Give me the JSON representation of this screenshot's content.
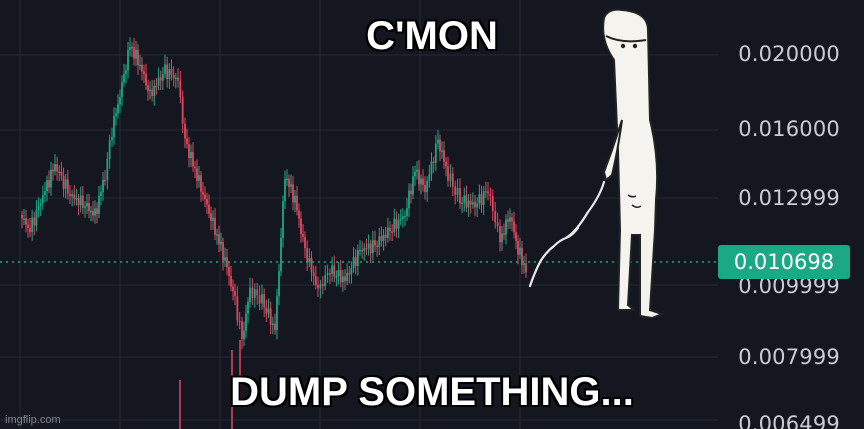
{
  "meme": {
    "top_text": "C'MON",
    "bottom_text": "DUMP SOMETHING...",
    "watermark": "imgflip.com"
  },
  "chart": {
    "price_axis_labels": [
      "0.020000",
      "0.016000",
      "0.012999",
      "0.009999",
      "0.007999",
      "0.006499"
    ],
    "current_price": "0.010698",
    "colors": {
      "background": "#14171f",
      "up": "#1ba885",
      "down": "#e0475f",
      "grid": "#252a36",
      "price_line": "#1ba885",
      "price_tag": "#1ba885"
    }
  },
  "figure": {
    "description_icon": "stick-figure-icon",
    "pointer_icon": "stick-pointer-icon"
  }
}
